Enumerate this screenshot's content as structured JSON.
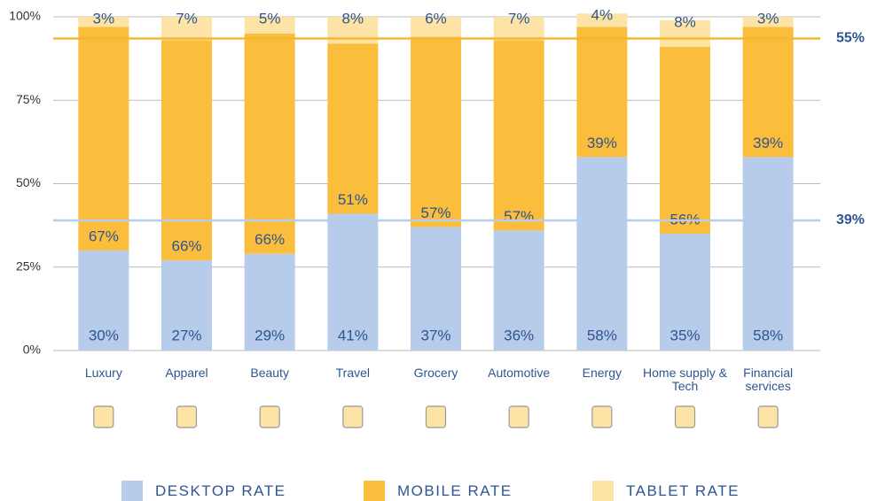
{
  "chart_data": {
    "type": "stacked_bar",
    "categories": [
      "Luxury",
      "Apparel",
      "Beauty",
      "Travel",
      "Grocery",
      "Automotive",
      "Energy",
      "Home supply & Tech",
      "Financial services"
    ],
    "series": [
      {
        "name": "DESKTOP RATE",
        "color": "#b7cbea",
        "values": [
          30,
          27,
          29,
          41,
          37,
          36,
          58,
          35,
          58
        ],
        "value_labels": [
          "30%",
          "27%",
          "29%",
          "41%",
          "37%",
          "36%",
          "58%",
          "35%",
          "58%"
        ]
      },
      {
        "name": "MOBILE RATE",
        "color": "#fbbd3c",
        "values": [
          67,
          66,
          66,
          51,
          57,
          57,
          39,
          56,
          39
        ],
        "value_labels": [
          "67%",
          "66%",
          "66%",
          "51%",
          "57%",
          "57%",
          "39%",
          "56%",
          "39%"
        ]
      },
      {
        "name": "TABLET RATE",
        "color": "#fde3a6",
        "values": [
          3,
          7,
          5,
          8,
          6,
          7,
          4,
          8,
          3
        ],
        "value_labels": [
          "3%",
          "7%",
          "5%",
          "8%",
          "6%",
          "7%",
          "4%",
          "8%",
          "3%"
        ]
      }
    ],
    "ylim": [
      0,
      100
    ],
    "yticks": [
      {
        "value": 0,
        "label": "0%"
      },
      {
        "value": 25,
        "label": "25%"
      },
      {
        "value": 50,
        "label": "50%"
      },
      {
        "value": 75,
        "label": "75%"
      },
      {
        "value": 100,
        "label": "100%"
      }
    ],
    "grid": true,
    "reference_lines": [
      {
        "value": 93.5,
        "color": "#f5b731"
      },
      {
        "value": 39,
        "color": "#b7cbea"
      }
    ],
    "annotations": [
      "55%",
      "39%"
    ],
    "legend": "bottom"
  }
}
